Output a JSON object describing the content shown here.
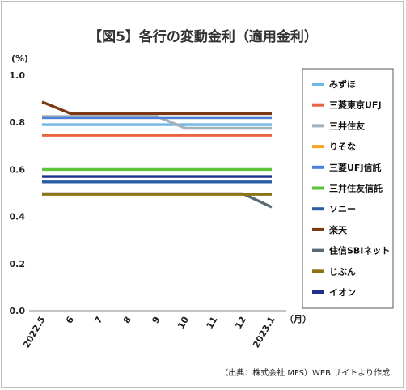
{
  "chart_data": {
    "type": "line",
    "title": "【図5】各行の変動金利（適用金利）",
    "y_unit": "(%)",
    "x_unit": "（月）",
    "source": "（出典：株式会社 MFS）WEB サイトより作成",
    "categories": [
      "2022.5",
      "6",
      "7",
      "8",
      "9",
      "10",
      "11",
      "12",
      "2023.1"
    ],
    "ylim": [
      0.0,
      1.0
    ],
    "yticks": [
      "0.0",
      "0.2",
      "0.4",
      "0.6",
      "0.8",
      "1.0"
    ],
    "grid": false,
    "legend_position": "right",
    "series": [
      {
        "name": "みずほ",
        "color": "#6fb8e6",
        "values": [
          0.79,
          0.79,
          0.79,
          0.79,
          0.79,
          0.79,
          0.79,
          0.79,
          0.79
        ]
      },
      {
        "name": "三菱東京UFJ",
        "color": "#e8663d",
        "values": [
          0.745,
          0.745,
          0.745,
          0.745,
          0.745,
          0.745,
          0.745,
          0.745,
          0.745
        ]
      },
      {
        "name": "三井住友",
        "color": "#a3b1bc",
        "values": [
          0.825,
          0.825,
          0.825,
          0.825,
          0.825,
          0.775,
          0.775,
          0.775,
          0.775
        ]
      },
      {
        "name": "りそな",
        "color": "#f5a623",
        "values": [
          0.82,
          0.82,
          0.82,
          0.82,
          0.82,
          0.82,
          0.82,
          0.82,
          0.82
        ]
      },
      {
        "name": "三菱UFJ信託",
        "color": "#4a80e0",
        "values": [
          0.82,
          0.82,
          0.82,
          0.82,
          0.82,
          0.82,
          0.82,
          0.82,
          0.82
        ]
      },
      {
        "name": "三井住友信託",
        "color": "#5fc43b",
        "values": [
          0.6,
          0.6,
          0.6,
          0.6,
          0.6,
          0.6,
          0.6,
          0.6,
          0.6
        ]
      },
      {
        "name": "ソニー",
        "color": "#2c5ea8",
        "values": [
          0.547,
          0.547,
          0.547,
          0.547,
          0.547,
          0.547,
          0.547,
          0.547,
          0.547
        ]
      },
      {
        "name": "楽天",
        "color": "#7a3a16",
        "values": [
          0.887,
          0.837,
          0.837,
          0.837,
          0.837,
          0.837,
          0.837,
          0.837,
          0.837
        ]
      },
      {
        "name": "住信SBIネット",
        "color": "#596a74",
        "values": [
          0.497,
          0.497,
          0.497,
          0.497,
          0.497,
          0.497,
          0.497,
          0.497,
          0.44
        ]
      },
      {
        "name": "じぶん",
        "color": "#8c7416",
        "values": [
          0.494,
          0.494,
          0.494,
          0.494,
          0.494,
          0.494,
          0.494,
          0.494,
          0.494
        ]
      },
      {
        "name": "イオン",
        "color": "#1f2f8f",
        "values": [
          0.57,
          0.57,
          0.57,
          0.57,
          0.57,
          0.57,
          0.57,
          0.57,
          0.57
        ]
      }
    ]
  }
}
